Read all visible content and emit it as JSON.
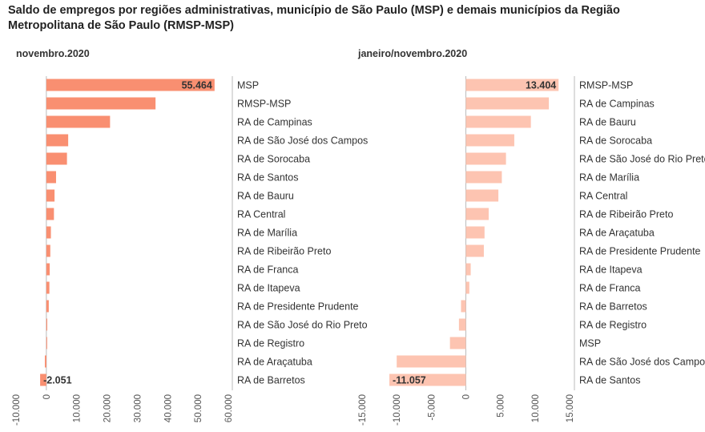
{
  "title": "Saldo de empregos por regiões administrativas, município de São Paulo (MSP) e demais municípios da Região Metropolitana de São Paulo (RMSP-MSP)",
  "colors": {
    "left_bar": "#f98f71",
    "right_bar": "#fdc4b1",
    "axis": "#bbbbbb",
    "label": "#333333",
    "value_label": "#333333"
  },
  "chart_data": [
    {
      "type": "bar",
      "orientation": "horizontal",
      "title": "novembro.2020",
      "xlabel": "",
      "ylabel": "",
      "xlim": [
        -10000,
        60000
      ],
      "ticks": [
        -10000,
        0,
        10000,
        20000,
        30000,
        40000,
        50000,
        60000
      ],
      "tick_labels": [
        "-10.000",
        "0",
        "10.000",
        "20.000",
        "30.000",
        "40.000",
        "50.000",
        "60.000"
      ],
      "grid": false,
      "categories": [
        "MSP",
        "RMSP-MSP",
        "RA de Campinas",
        "RA de São José dos Campos",
        "RA de Sorocaba",
        "RA de Santos",
        "RA de Bauru",
        "RA Central",
        "RA de Marília",
        "RA de Ribeirão Preto",
        "RA de Franca",
        "RA de Itapeva",
        "RA de Presidente Prudente",
        "RA de São José do Rio Preto",
        "RA de Registro",
        "RA de Araçatuba",
        "RA de Barretos"
      ],
      "values": [
        55464,
        36000,
        21000,
        7200,
        6800,
        3200,
        2700,
        2500,
        1500,
        1300,
        1100,
        1000,
        800,
        300,
        200,
        -500,
        -2051
      ],
      "value_labels": [
        {
          "index": 0,
          "text": "55.464"
        },
        {
          "index": 16,
          "text": "-2.051"
        }
      ]
    },
    {
      "type": "bar",
      "orientation": "horizontal",
      "title": "janeiro/novembro.2020",
      "xlabel": "",
      "ylabel": "",
      "xlim": [
        -15000,
        15000
      ],
      "ticks": [
        -15000,
        -10000,
        -5000,
        0,
        5000,
        10000,
        15000
      ],
      "tick_labels": [
        "-15.000",
        "-10.000",
        "-5.000",
        "0",
        "5.000",
        "10.000",
        "15.000"
      ],
      "grid": false,
      "categories": [
        "RMSP-MSP",
        "RA de Campinas",
        "RA de Bauru",
        "RA de Sorocaba",
        "RA de São José do Rio Preto",
        "RA de Marília",
        "RA Central",
        "RA de Ribeirão Preto",
        "RA de Araçatuba",
        "RA de Presidente Prudente",
        "RA de Itapeva",
        "RA de Franca",
        "RA de Barretos",
        "RA de Registro",
        "MSP",
        "RA de São José dos Campos",
        "RA de Santos"
      ],
      "values": [
        13404,
        12000,
        9400,
        7000,
        5800,
        5200,
        4700,
        3300,
        2700,
        2600,
        700,
        500,
        -700,
        -1000,
        -2300,
        -10000,
        -11057
      ],
      "value_labels": [
        {
          "index": 0,
          "text": "13.404"
        },
        {
          "index": 16,
          "text": "-11.057"
        }
      ]
    }
  ]
}
